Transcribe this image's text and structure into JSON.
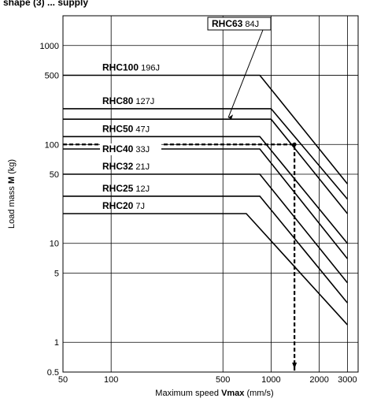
{
  "header": {
    "title_fragment": "shape (3) ... supply"
  },
  "chart_data": {
    "type": "line",
    "xlabel_prefix": "Maximum speed ",
    "xlabel_bold": "Vmax",
    "xlabel_suffix": " (mm/s)",
    "ylabel_prefix": "Load mass ",
    "ylabel_bold": "M",
    "ylabel_suffix": " (kg)",
    "x_scale": "log",
    "y_scale": "log",
    "xlim": [
      50,
      3500
    ],
    "ylim": [
      0.5,
      2000
    ],
    "x_ticks": [
      "50",
      "100",
      "500",
      "1000",
      "2000",
      "3000"
    ],
    "y_ticks": [
      "0.5",
      "1",
      "5",
      "10",
      "50",
      "100",
      "500",
      "1000"
    ],
    "series": [
      {
        "name": "RHC100",
        "energy": "196J",
        "points": [
          [
            50,
            500
          ],
          [
            850,
            500
          ],
          [
            3000,
            40
          ]
        ]
      },
      {
        "name": "RHC80",
        "energy": "127J",
        "points": [
          [
            50,
            230
          ],
          [
            1000,
            230
          ],
          [
            3000,
            28
          ]
        ]
      },
      {
        "name": "RHC63",
        "energy": "84J",
        "points": [
          [
            50,
            180
          ],
          [
            1000,
            180
          ],
          [
            3000,
            20
          ]
        ]
      },
      {
        "name": "RHC50",
        "energy": "47J",
        "points": [
          [
            50,
            120
          ],
          [
            850,
            120
          ],
          [
            3000,
            10
          ]
        ]
      },
      {
        "name": "RHC40",
        "energy": "33J",
        "points": [
          [
            50,
            90
          ],
          [
            850,
            90
          ],
          [
            3000,
            7
          ]
        ]
      },
      {
        "name": "RHC32",
        "energy": "21J",
        "points": [
          [
            50,
            50
          ],
          [
            850,
            50
          ],
          [
            3000,
            4
          ]
        ]
      },
      {
        "name": "RHC25",
        "energy": "12J",
        "points": [
          [
            50,
            30
          ],
          [
            850,
            30
          ],
          [
            3000,
            2.5
          ]
        ]
      },
      {
        "name": "RHC20",
        "energy": "7J",
        "points": [
          [
            50,
            20
          ],
          [
            700,
            20
          ],
          [
            3000,
            1.5
          ]
        ]
      }
    ],
    "example_line": {
      "load_kg": 100,
      "speed_mm_s": 1400
    }
  }
}
